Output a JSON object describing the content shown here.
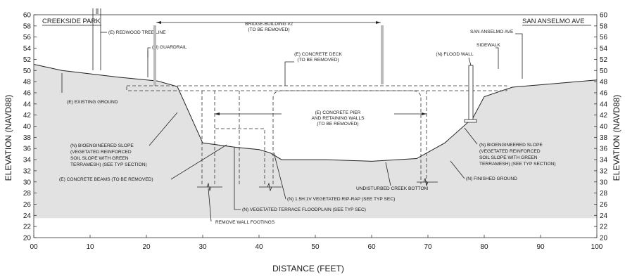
{
  "chart_data": {
    "type": "diagram",
    "xlabel": "DISTANCE (FEET)",
    "ylabel_left": "ELEVATION (NAVD88)",
    "ylabel_right": "ELEVATION (NAVD88)",
    "x_ticks": [
      "00",
      "10",
      "20",
      "30",
      "40",
      "50",
      "60",
      "70",
      "80",
      "90",
      "100"
    ],
    "y_ticks": [
      "20",
      "22",
      "24",
      "26",
      "28",
      "30",
      "32",
      "34",
      "36",
      "38",
      "40",
      "42",
      "44",
      "46",
      "48",
      "50",
      "52",
      "54",
      "56",
      "58",
      "60"
    ],
    "xlim": [
      0,
      100
    ],
    "ylim": [
      20,
      60
    ],
    "fill_color": "#e2e2e2",
    "ground_profile": [
      [
        0,
        51.1
      ],
      [
        5,
        50
      ],
      [
        10,
        49.4
      ],
      [
        15,
        48.8
      ],
      [
        22,
        48.1
      ],
      [
        25.5,
        47.1
      ],
      [
        30,
        37
      ],
      [
        36,
        36.2
      ],
      [
        40,
        35.8
      ],
      [
        42,
        35.2
      ],
      [
        44,
        34
      ],
      [
        52,
        34
      ],
      [
        60,
        33.7
      ],
      [
        68,
        34.2
      ],
      [
        73,
        37
      ],
      [
        78,
        41.5
      ],
      [
        80,
        45.3
      ],
      [
        85,
        47
      ],
      [
        100,
        48.3
      ]
    ]
  },
  "labels": {
    "creekside_park": "CREEKSIDE PARK",
    "san_anselmo_ave_title": "SAN ANSELMO AVE",
    "redwood": "(E) REDWOOD TREE LINE",
    "guardrail": "(N) GUARDRAIL",
    "bridge_l1": "BRIDGE-BUILDING #2",
    "bridge_l2": "(TO BE REMOVED)",
    "deck_l1": "(E) CONCRETE DECK",
    "deck_l2": "(TO BE REMOVED)",
    "sidewalk": "SIDEWALK",
    "flood_wall": "(N) FLOOD WALL",
    "san_anselmo_ave": "SAN ANSELMO AVE",
    "existing_ground": "(E) EXISTING GROUND",
    "pier_l1": "(E) CONCRETE PIER",
    "pier_l2": "AND RETAINING WALLS",
    "pier_l3": "(TO BE REMOVED)",
    "bio_left_l1": "(N)  BIOENGINEERED SLOPE",
    "bio_left_l2": "(VEGETATED REINFORCED",
    "bio_left_l3": "SOIL SLOPE WITH GREEN",
    "bio_left_l4": "TERRAMESH) (SEE TYP SECTION)",
    "bio_right_l1": "(N) BIOENGINEERED SLOPE",
    "bio_right_l2": "(VEGETATED REINFORCED",
    "bio_right_l3": "SOIL SLOPE WITH GREEN",
    "bio_right_l4": "TERRAMESH) (SEE TYP SECTION)",
    "beams": "(E) CONCRETE BEAMS (TO BE REMOVED)",
    "undisturbed": "UNDISTURBED CREEK BOTTOM",
    "finished_ground": "(N) FINISHED GROUND",
    "riprap": "(N) 1.5H:1V VEGETATED RIP-RAP (SEE TYP SEC)",
    "terrace": "(N) VEGETATED TERRACE FLOODPLAIN (SEE TYP SEC)",
    "footings": "REMOVE WALL FOOTINGS"
  }
}
